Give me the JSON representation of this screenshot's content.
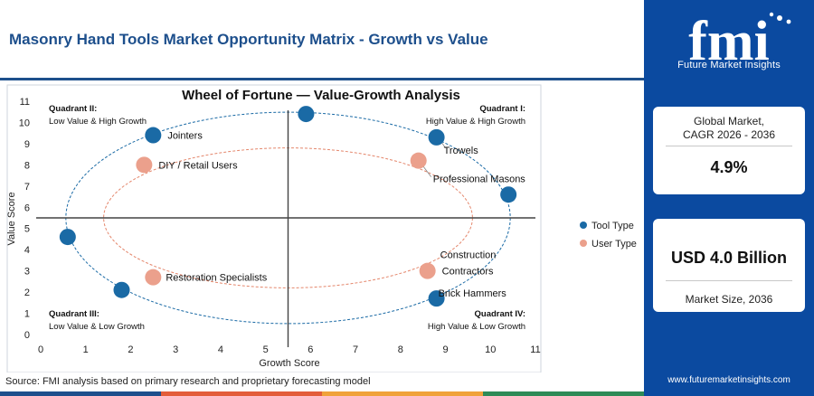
{
  "header": {
    "title": "Masonry Hand Tools Market Opportunity Matrix - Growth vs Value"
  },
  "brand": {
    "logo_text": "fmi",
    "tagline": "Future Market Insights",
    "website": "www.futuremarketinsights.com",
    "panel_color": "#0b4aa0"
  },
  "cards": {
    "cagr_label_1": "Global Market,",
    "cagr_label_2": "CAGR 2026 - 2036",
    "cagr_value": "4.9%",
    "size_value": "USD 4.0 Billion",
    "size_label": "Market Size, 2036"
  },
  "source": "Source: FMI analysis based on primary research and proprietary forecasting model",
  "footer_colors": [
    "#1d4f8c",
    "#e35d3a",
    "#f0a23a",
    "#2e8b57"
  ],
  "chart_data": {
    "type": "scatter",
    "title": "Wheel of Fortune — Value-Growth Analysis",
    "xlabel": "Growth Score",
    "ylabel": "Value Score",
    "xlim": [
      0,
      11
    ],
    "ylim": [
      0,
      11
    ],
    "xticks": [
      0,
      1,
      2,
      3,
      4,
      5,
      6,
      7,
      8,
      9,
      10,
      11
    ],
    "yticks": [
      0,
      1,
      2,
      3,
      4,
      5,
      6,
      7,
      8,
      9,
      10,
      11
    ],
    "center": [
      5.5,
      5.5
    ],
    "grid": false,
    "legend_position": "right",
    "series": [
      {
        "name": "Tool Type",
        "color": "#1a6aa5",
        "points": [
          {
            "x": 5.9,
            "y": 10.4,
            "label": ""
          },
          {
            "x": 2.5,
            "y": 9.4,
            "label": "Jointers"
          },
          {
            "x": 8.8,
            "y": 9.3,
            "label": "Trowels"
          },
          {
            "x": 10.4,
            "y": 6.6,
            "label": ""
          },
          {
            "x": 0.6,
            "y": 4.6,
            "label": ""
          },
          {
            "x": 1.8,
            "y": 2.1,
            "label": ""
          },
          {
            "x": 8.8,
            "y": 1.7,
            "label": "Brick Hammers"
          }
        ]
      },
      {
        "name": "User Type",
        "color": "#eba08c",
        "points": [
          {
            "x": 2.3,
            "y": 8.0,
            "label": "DIY / Retail Users"
          },
          {
            "x": 8.4,
            "y": 8.2,
            "label": "Professional Masons"
          },
          {
            "x": 2.5,
            "y": 2.7,
            "label": "Restoration Specialists"
          },
          {
            "x": 8.6,
            "y": 3.0,
            "label": "Construction Contractors"
          }
        ]
      }
    ],
    "quadrants": [
      {
        "title": "Quadrant II:",
        "subtitle": "Low Value & High Growth",
        "position": "top-left"
      },
      {
        "title": "Quadrant I:",
        "subtitle": "High Value & High Growth",
        "position": "top-right"
      },
      {
        "title": "Quadrant III:",
        "subtitle": "Low Value & Low Growth",
        "position": "bottom-left"
      },
      {
        "title": "Quadrant IV:",
        "subtitle": "High Value & Low Growth",
        "position": "bottom-right"
      }
    ]
  }
}
